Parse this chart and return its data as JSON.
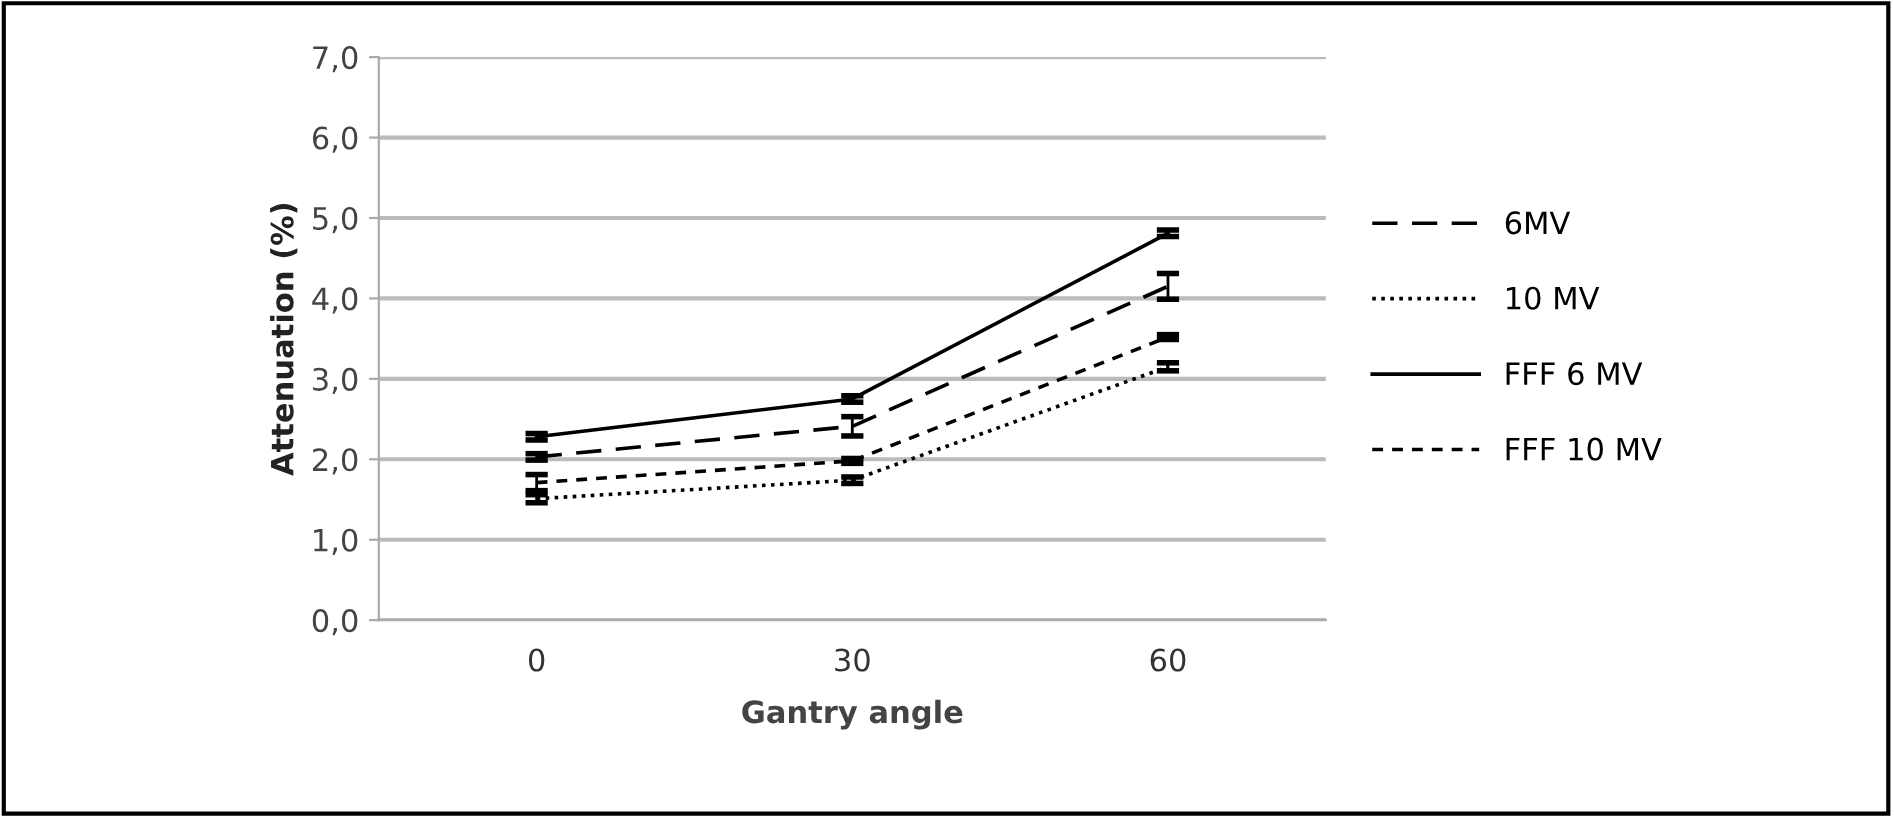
{
  "chart_data": {
    "type": "line",
    "xlabel": "Gantry angle",
    "ylabel": "Attenuation (%)",
    "categories": [
      "0",
      "30",
      "60"
    ],
    "series": [
      {
        "name": "6MV",
        "color": "#000000",
        "line_style": "dashed",
        "values": [
          2.03,
          2.41,
          4.15
        ],
        "errors": [
          0.04,
          0.12,
          0.16
        ]
      },
      {
        "name": "10 MV",
        "color": "#000000",
        "line_style": "dotted",
        "values": [
          1.51,
          1.74,
          3.15
        ],
        "errors": [
          0.05,
          0.04,
          0.05
        ]
      },
      {
        "name": "FFF 6 MV",
        "color": "#000000",
        "line_style": "solid",
        "values": [
          2.28,
          2.75,
          4.81
        ],
        "errors": [
          0.04,
          0.04,
          0.04
        ]
      },
      {
        "name": "FFF 10 MV",
        "color": "#000000",
        "line_style": "densely_dashed",
        "values": [
          1.71,
          1.98,
          3.52
        ],
        "errors": [
          0.1,
          0.03,
          0.03
        ]
      }
    ],
    "ylim": [
      0,
      7
    ],
    "yticks": [
      {
        "value": 0,
        "label": "0,0"
      },
      {
        "value": 1,
        "label": "1,0"
      },
      {
        "value": 2,
        "label": "2,0"
      },
      {
        "value": 3,
        "label": "3,0"
      },
      {
        "value": 4,
        "label": "4,0"
      },
      {
        "value": 5,
        "label": "5,0"
      },
      {
        "value": 6,
        "label": "6,0"
      },
      {
        "value": 7,
        "label": "7,0"
      }
    ],
    "grid": "y",
    "legend": "right",
    "marker": "none"
  }
}
